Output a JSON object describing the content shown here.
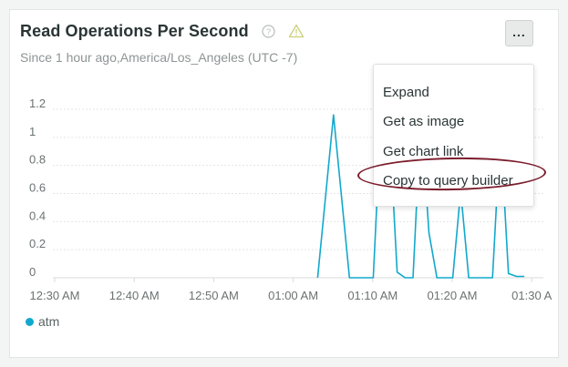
{
  "widget": {
    "title": "Read Operations Per Second",
    "subtitle": "Since 1 hour ago,America/Los_Angeles (UTC -7)",
    "more_label": "...",
    "icons": {
      "help": "help-circle-icon",
      "warning": "warning-triangle-icon"
    }
  },
  "menu": {
    "items": [
      {
        "label": "Expand"
      },
      {
        "label": "Get as image"
      },
      {
        "label": "Get chart link"
      },
      {
        "label": "Copy to query builder"
      }
    ],
    "highlighted_item": "Copy to query builder",
    "highlight_color": "#7b1c2c"
  },
  "legend": {
    "items": [
      {
        "label": "atm",
        "color": "#11a8cd"
      }
    ]
  },
  "chart_data": {
    "type": "line",
    "x_tick_labels": [
      "12:30 AM",
      "12:40 AM",
      "12:50 AM",
      "01:00 AM",
      "01:10 AM",
      "01:20 AM",
      "01:30 A"
    ],
    "y_tick_labels": [
      "1.2",
      "1",
      "0.8",
      "0.6",
      "0.4",
      "0.2",
      "0"
    ],
    "ylim": [
      0,
      1.2
    ],
    "grid": true,
    "series": [
      {
        "name": "atm",
        "color": "#11a8cd",
        "points": [
          [
            "00:58",
            0
          ],
          [
            "01:00",
            1.16
          ],
          [
            "01:02",
            0
          ],
          [
            "01:05",
            0
          ],
          [
            "01:06",
            1.17
          ],
          [
            "01:07",
            1.1
          ],
          [
            "01:08",
            0.04
          ],
          [
            "01:09",
            0
          ],
          [
            "01:10",
            0
          ],
          [
            "01:11",
            1.16
          ],
          [
            "01:12",
            0.32
          ],
          [
            "01:13",
            0
          ],
          [
            "01:15",
            0
          ],
          [
            "01:16",
            0.62
          ],
          [
            "01:17",
            0
          ],
          [
            "01:20",
            0
          ],
          [
            "01:21",
            1.05
          ],
          [
            "01:22",
            0.03
          ],
          [
            "01:23",
            0.01
          ],
          [
            "01:24",
            0.01
          ]
        ]
      }
    ]
  }
}
